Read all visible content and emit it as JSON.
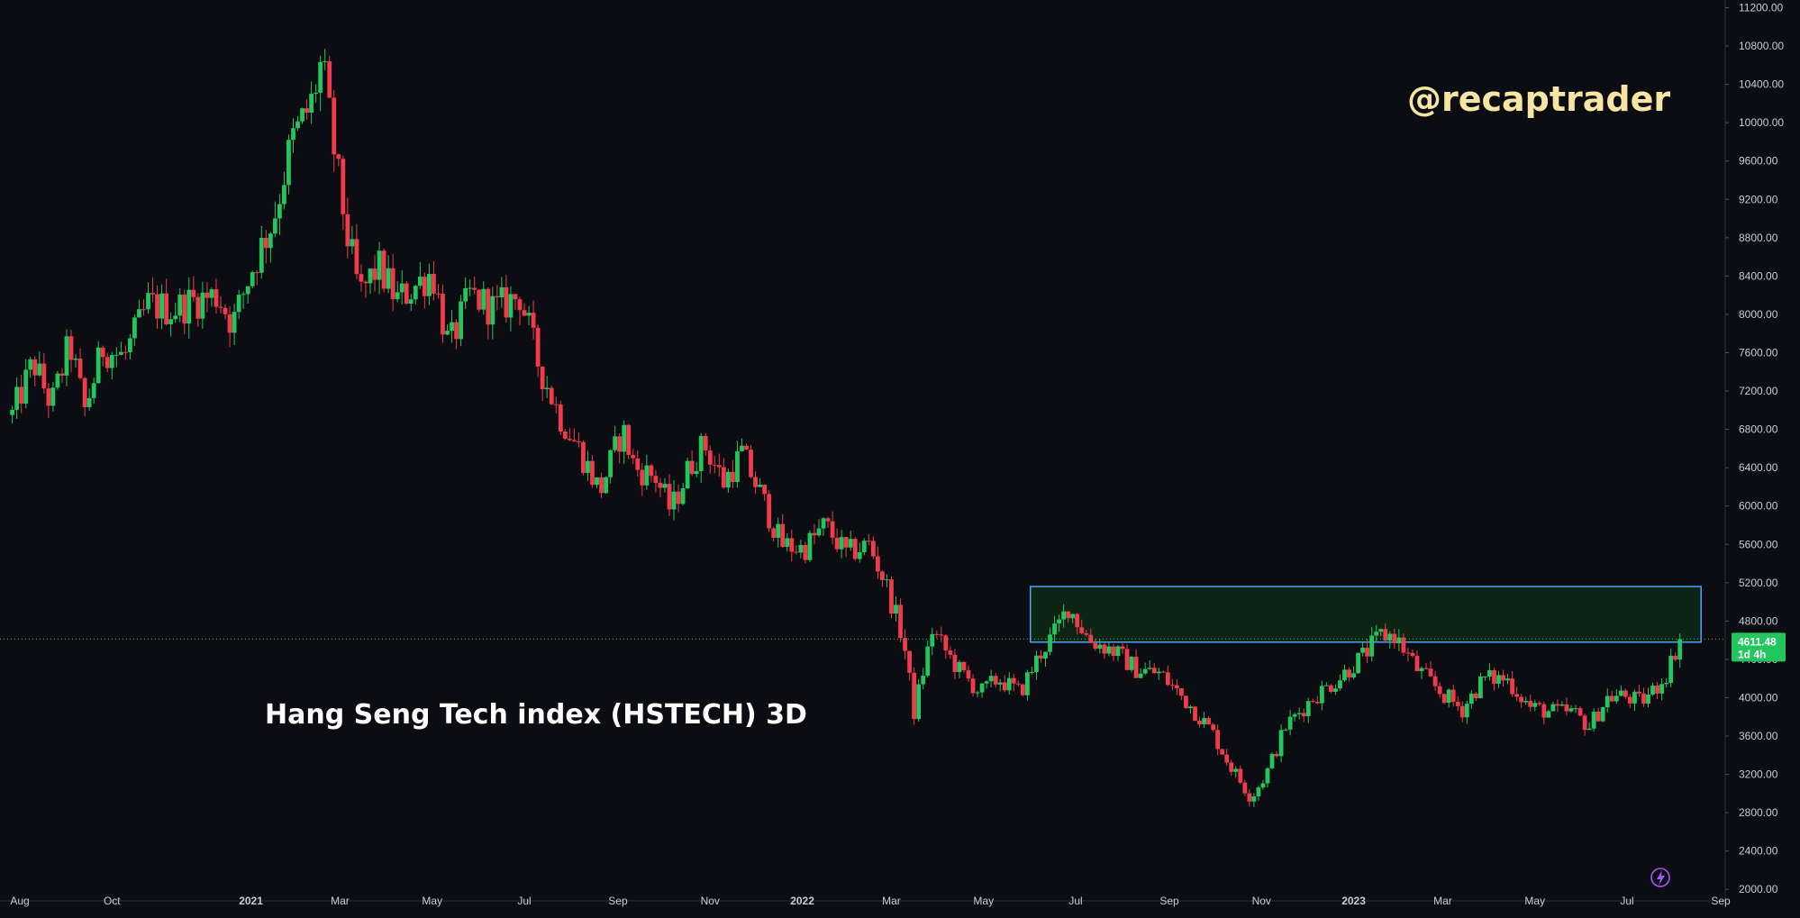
{
  "watermark": "@recaptrader",
  "chart_data": {
    "type": "candlestick",
    "title": "Hang Seng Tech index (HSTECH) 3D",
    "ylim": [
      1880,
      11280
    ],
    "y_ticks": [
      2000,
      2400,
      2800,
      3200,
      3600,
      4000,
      4400,
      4800,
      5200,
      5600,
      6000,
      6400,
      6800,
      7200,
      7600,
      8000,
      8400,
      8800,
      9200,
      9600,
      10000,
      10400,
      10800,
      11200
    ],
    "y_tick_labels": [
      "2000.00",
      "2400.00",
      "2800.00",
      "3200.00",
      "3600.00",
      "4000.00",
      "4400.00",
      "4800.00",
      "5200.00",
      "5600.00",
      "6000.00",
      "6400.00",
      "6800.00",
      "7200.00",
      "7600.00",
      "8000.00",
      "8400.00",
      "8800.00",
      "9200.00",
      "9600.00",
      "10000.00",
      "10400.00",
      "10800.00",
      "11200.00"
    ],
    "x_ticks": [
      {
        "label": "Aug",
        "date": "2020-08-01",
        "bold": false
      },
      {
        "label": "Oct",
        "date": "2020-10-01",
        "bold": false
      },
      {
        "label": "2021",
        "date": "2021-01-01",
        "bold": true
      },
      {
        "label": "Mar",
        "date": "2021-03-01",
        "bold": false
      },
      {
        "label": "May",
        "date": "2021-05-01",
        "bold": false
      },
      {
        "label": "Jul",
        "date": "2021-07-01",
        "bold": false
      },
      {
        "label": "Sep",
        "date": "2021-09-01",
        "bold": false
      },
      {
        "label": "Nov",
        "date": "2021-11-01",
        "bold": false
      },
      {
        "label": "2022",
        "date": "2022-01-01",
        "bold": true
      },
      {
        "label": "Mar",
        "date": "2022-03-01",
        "bold": false
      },
      {
        "label": "May",
        "date": "2022-05-01",
        "bold": false
      },
      {
        "label": "Jul",
        "date": "2022-07-01",
        "bold": false
      },
      {
        "label": "Sep",
        "date": "2022-09-01",
        "bold": false
      },
      {
        "label": "Nov",
        "date": "2022-11-01",
        "bold": false
      },
      {
        "label": "2023",
        "date": "2023-01-01",
        "bold": true
      },
      {
        "label": "Mar",
        "date": "2023-03-01",
        "bold": false
      },
      {
        "label": "May",
        "date": "2023-05-01",
        "bold": false
      },
      {
        "label": "Jul",
        "date": "2023-07-01",
        "bold": false
      },
      {
        "label": "Sep",
        "date": "2023-09-01",
        "bold": false
      }
    ],
    "last_price": 4611.48,
    "last_price_label": "4611.48",
    "countdown_label": "1d 4h",
    "zone": {
      "date_start": "2022-06-01",
      "date_end": "2023-08-19",
      "y_low": 4580,
      "y_high": 5160
    },
    "grid": false,
    "colors": {
      "up": "#22c55e",
      "down": "#ef3b4a",
      "background": "#0b0d13",
      "zone_fill": "#0f2a18",
      "zone_border": "#4aa3ff",
      "price_line": "#22c55e"
    },
    "anchors": [
      [
        "2020-07-27",
        6950
      ],
      [
        "2020-08-10",
        7500
      ],
      [
        "2020-08-22",
        7050
      ],
      [
        "2020-09-03",
        7700
      ],
      [
        "2020-09-13",
        7000
      ],
      [
        "2020-09-25",
        7650
      ],
      [
        "2020-10-09",
        7550
      ],
      [
        "2020-10-25",
        8100
      ],
      [
        "2020-11-10",
        8050
      ],
      [
        "2020-11-25",
        8150
      ],
      [
        "2020-12-10",
        8200
      ],
      [
        "2020-12-20",
        7900
      ],
      [
        "2021-01-01",
        8450
      ],
      [
        "2021-01-16",
        9000
      ],
      [
        "2021-01-28",
        9800
      ],
      [
        "2021-02-10",
        10200
      ],
      [
        "2021-02-17",
        10650
      ],
      [
        "2021-02-26",
        9600
      ],
      [
        "2021-03-06",
        8800
      ],
      [
        "2021-03-14",
        8200
      ],
      [
        "2021-03-26",
        8500
      ],
      [
        "2021-04-08",
        8150
      ],
      [
        "2021-04-20",
        8300
      ],
      [
        "2021-05-01",
        8450
      ],
      [
        "2021-05-12",
        7650
      ],
      [
        "2021-05-26",
        8200
      ],
      [
        "2021-06-12",
        8050
      ],
      [
        "2021-06-28",
        8200
      ],
      [
        "2021-07-10",
        7500
      ],
      [
        "2021-07-24",
        6950
      ],
      [
        "2021-08-06",
        6600
      ],
      [
        "2021-08-20",
        6150
      ],
      [
        "2021-09-04",
        6800
      ],
      [
        "2021-09-12",
        6400
      ],
      [
        "2021-09-26",
        6300
      ],
      [
        "2021-10-06",
        5950
      ],
      [
        "2021-10-18",
        6400
      ],
      [
        "2021-10-28",
        6650
      ],
      [
        "2021-11-10",
        6250
      ],
      [
        "2021-11-22",
        6550
      ],
      [
        "2021-12-05",
        6100
      ],
      [
        "2021-12-18",
        5600
      ],
      [
        "2022-01-02",
        5550
      ],
      [
        "2022-01-16",
        5800
      ],
      [
        "2022-01-30",
        5500
      ],
      [
        "2022-02-14",
        5600
      ],
      [
        "2022-02-25",
        5200
      ],
      [
        "2022-03-09",
        4600
      ],
      [
        "2022-03-16",
        3850
      ],
      [
        "2022-03-28",
        4700
      ],
      [
        "2022-04-14",
        4300
      ],
      [
        "2022-04-29",
        4050
      ],
      [
        "2022-05-11",
        4200
      ],
      [
        "2022-05-25",
        4050
      ],
      [
        "2022-06-07",
        4450
      ],
      [
        "2022-06-18",
        4700
      ],
      [
        "2022-06-26",
        4950
      ],
      [
        "2022-07-10",
        4600
      ],
      [
        "2022-07-25",
        4500
      ],
      [
        "2022-08-10",
        4300
      ],
      [
        "2022-08-26",
        4250
      ],
      [
        "2022-09-13",
        3950
      ],
      [
        "2022-09-29",
        3650
      ],
      [
        "2022-10-11",
        3300
      ],
      [
        "2022-10-25",
        2960
      ],
      [
        "2022-11-04",
        3200
      ],
      [
        "2022-11-17",
        3700
      ],
      [
        "2022-12-05",
        4000
      ],
      [
        "2022-12-22",
        4200
      ],
      [
        "2023-01-08",
        4450
      ],
      [
        "2023-01-19",
        4650
      ],
      [
        "2023-01-28",
        4650
      ],
      [
        "2023-02-12",
        4300
      ],
      [
        "2023-02-28",
        4050
      ],
      [
        "2023-03-14",
        3880
      ],
      [
        "2023-03-28",
        4200
      ],
      [
        "2023-04-12",
        4200
      ],
      [
        "2023-04-28",
        3900
      ],
      [
        "2023-05-12",
        3850
      ],
      [
        "2023-05-26",
        3850
      ],
      [
        "2023-06-06",
        3700
      ],
      [
        "2023-06-18",
        4000
      ],
      [
        "2023-06-29",
        4020
      ],
      [
        "2023-07-10",
        3950
      ],
      [
        "2023-07-20",
        4100
      ],
      [
        "2023-07-27",
        4250
      ],
      [
        "2023-08-05",
        4611
      ]
    ]
  }
}
